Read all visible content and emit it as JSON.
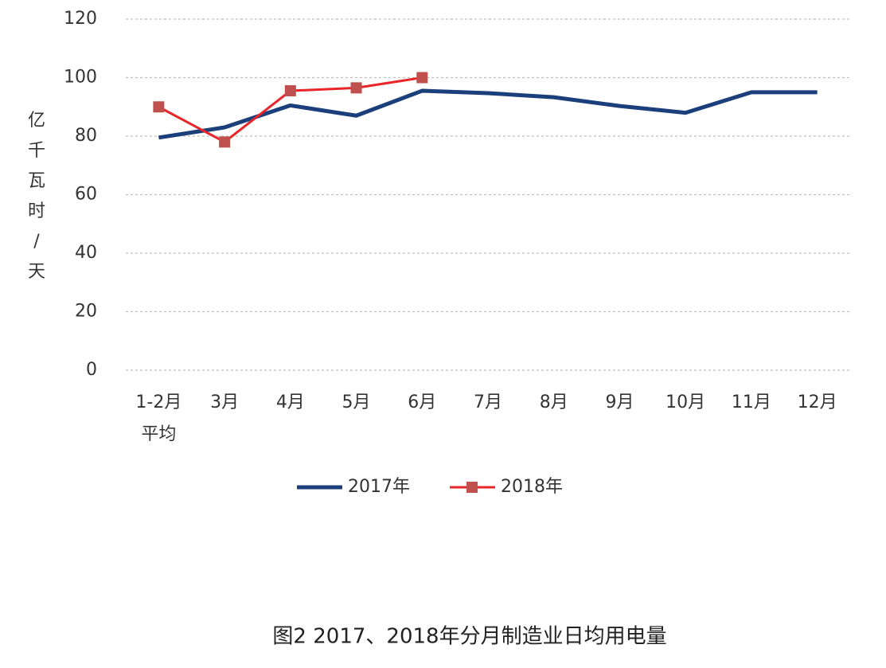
{
  "chart_data": {
    "type": "line",
    "title": "图2 2017、2018年分月制造业日均用电量",
    "y_label": "亿千瓦时/天",
    "categories": [
      "1-2月\n平均",
      "3月",
      "4月",
      "5月",
      "6月",
      "7月",
      "8月",
      "9月",
      "10月",
      "11月",
      "12月"
    ],
    "series": [
      {
        "name": "2017年",
        "color": "#1b3f7b",
        "marker": "none",
        "values": [
          79.5,
          83,
          90.5,
          87,
          95.5,
          94.7,
          93.3,
          90.3,
          88,
          95,
          95
        ]
      },
      {
        "name": "2018年",
        "color": "#e8262a",
        "marker": "square",
        "marker_color": "#c0504d",
        "values": [
          90,
          78,
          95.5,
          96.5,
          100,
          null,
          null,
          null,
          null,
          null,
          null
        ]
      }
    ],
    "ylim": [
      0,
      120
    ],
    "yticks": [
      0,
      20,
      40,
      60,
      80,
      100,
      120
    ],
    "grid": true,
    "legend": "bottom"
  }
}
